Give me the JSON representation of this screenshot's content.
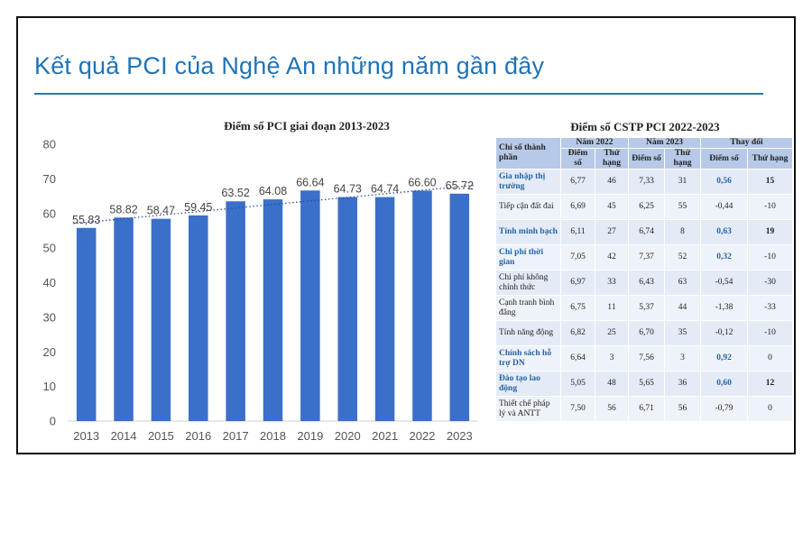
{
  "slide_title": "Kết quả PCI của Nghệ An những năm gần đây",
  "chart_data": {
    "type": "bar",
    "title": "Điểm số PCI giai đoạn 2013-2023",
    "categories": [
      "2013",
      "2014",
      "2015",
      "2016",
      "2017",
      "2018",
      "2019",
      "2020",
      "2021",
      "2022",
      "2023"
    ],
    "values": [
      55.83,
      58.82,
      58.47,
      59.45,
      63.52,
      64.08,
      66.64,
      64.73,
      64.74,
      66.6,
      65.72
    ],
    "labels": [
      "55,83",
      "58.82",
      "58.47",
      "59.45",
      "63.52",
      "64.08",
      "66.64",
      "64.73",
      "64.74",
      "66.60",
      "65.72"
    ],
    "ylim": [
      0,
      80
    ],
    "yticks": [
      0,
      10,
      20,
      30,
      40,
      50,
      60,
      70,
      80
    ],
    "trendline": "dotted linear",
    "bar_color": "#3a70c9",
    "grid": false,
    "xlabel": "",
    "ylabel": ""
  },
  "table": {
    "title": "Điểm số CSTP PCI 2022-2023",
    "col_indicator": "Chỉ số thành phần",
    "groups": [
      "Năm 2022",
      "Năm 2023",
      "Thay đổi"
    ],
    "subheaders": [
      "Điểm số",
      "Thứ hạng",
      "Điểm số",
      "Thứ hạng",
      "Điểm số",
      "Thứ hạng"
    ],
    "rows": [
      {
        "name": "Gia nhập thị trường",
        "s22": "6,77",
        "r22": "46",
        "s23": "7,33",
        "r23": "31",
        "ds": "0,56",
        "dr": "15",
        "hl": true,
        "ds_hl": true,
        "dr_bold": true
      },
      {
        "name": "Tiếp cận đất đai",
        "s22": "6,69",
        "r22": "45",
        "s23": "6,25",
        "r23": "55",
        "ds": "-0,44",
        "dr": "-10",
        "hl": false,
        "ds_hl": false,
        "dr_bold": false
      },
      {
        "name": "Tính minh bạch",
        "s22": "6,11",
        "r22": "27",
        "s23": "6,74",
        "r23": "8",
        "ds": "0,63",
        "dr": "19",
        "hl": true,
        "ds_hl": true,
        "dr_bold": true
      },
      {
        "name": "Chi phí thời gian",
        "s22": "7,05",
        "r22": "42",
        "s23": "7,37",
        "r23": "52",
        "ds": "0,32",
        "dr": "-10",
        "hl": true,
        "ds_hl": true,
        "dr_bold": false
      },
      {
        "name": "Chi phí không chính thức",
        "s22": "6,97",
        "r22": "33",
        "s23": "6,43",
        "r23": "63",
        "ds": "-0,54",
        "dr": "-30",
        "hl": false,
        "ds_hl": false,
        "dr_bold": false
      },
      {
        "name": "Cạnh tranh bình đẳng",
        "s22": "6,75",
        "r22": "11",
        "s23": "5,37",
        "r23": "44",
        "ds": "-1,38",
        "dr": "-33",
        "hl": false,
        "ds_hl": false,
        "dr_bold": false
      },
      {
        "name": "Tính năng động",
        "s22": "6,82",
        "r22": "25",
        "s23": "6,70",
        "r23": "35",
        "ds": "-0,12",
        "dr": "-10",
        "hl": false,
        "ds_hl": false,
        "dr_bold": false
      },
      {
        "name": "Chính sách hỗ trợ DN",
        "s22": "6,64",
        "r22": "3",
        "s23": "7,56",
        "r23": "3",
        "ds": "0,92",
        "dr": "0",
        "hl": true,
        "ds_hl": true,
        "dr_bold": false
      },
      {
        "name": "Đào tạo lao động",
        "s22": "5,05",
        "r22": "48",
        "s23": "5,65",
        "r23": "36",
        "ds": "0,60",
        "dr": "12",
        "hl": true,
        "ds_hl": true,
        "dr_bold": true
      },
      {
        "name": "Thiết chế pháp lý và ANTT",
        "s22": "7,50",
        "r22": "56",
        "s23": "6,71",
        "r23": "56",
        "ds": "-0,79",
        "dr": "0",
        "hl": false,
        "ds_hl": false,
        "dr_bold": false
      }
    ]
  }
}
